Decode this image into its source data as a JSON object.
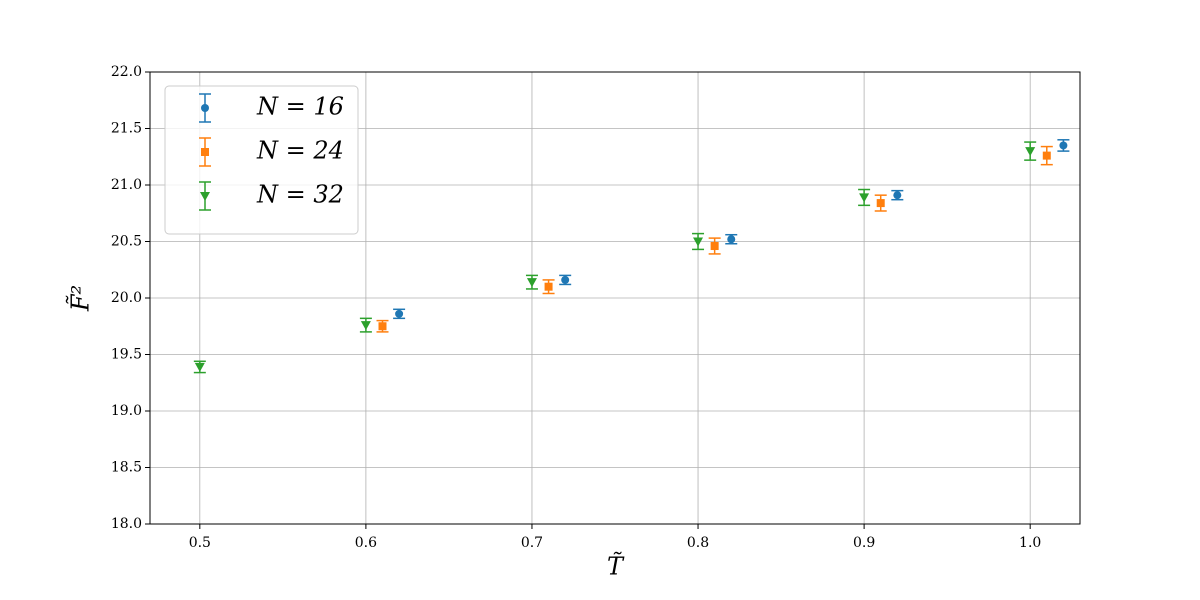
{
  "chart_data": {
    "type": "errorbar",
    "xlabel": "T̃",
    "ylabel": "F̃²",
    "xlim": [
      0.47,
      1.03
    ],
    "ylim": [
      18,
      22
    ],
    "xticks": [
      0.5,
      0.6,
      0.7,
      0.8,
      0.9,
      {
        "value": 1.0,
        "label": "1.0"
      }
    ],
    "yticks": [
      {
        "value": 18,
        "label": "18.0"
      },
      18.5,
      {
        "value": 19,
        "label": "19.0"
      },
      19.5,
      {
        "value": 20,
        "label": "20.0"
      },
      20.5,
      {
        "value": 21,
        "label": "21.0"
      },
      21.5,
      {
        "value": 22,
        "label": "22.0"
      }
    ],
    "grid": true,
    "legend": "upper left",
    "series": [
      {
        "name": "N = 16",
        "color": "#1f77b4",
        "marker": "circle",
        "x": [
          0.62,
          0.72,
          0.82,
          0.92,
          1.02
        ],
        "values": [
          19.86,
          20.16,
          20.52,
          20.91,
          21.35
        ],
        "errors": [
          0.04,
          0.04,
          0.04,
          0.04,
          0.05
        ]
      },
      {
        "name": "N = 24",
        "color": "#ff7f0e",
        "marker": "square",
        "x": [
          0.61,
          0.71,
          0.81,
          0.91,
          1.01
        ],
        "values": [
          19.75,
          20.1,
          20.46,
          20.84,
          21.26
        ],
        "errors": [
          0.05,
          0.06,
          0.07,
          0.07,
          0.08
        ]
      },
      {
        "name": "N = 32",
        "color": "#2ca02c",
        "marker": "triangle-down",
        "x": [
          0.5,
          0.6,
          0.7,
          0.8,
          0.9,
          1.0
        ],
        "values": [
          19.39,
          19.76,
          20.14,
          20.5,
          20.89,
          21.3
        ],
        "errors": [
          0.05,
          0.06,
          0.06,
          0.07,
          0.07,
          0.08
        ]
      }
    ]
  }
}
